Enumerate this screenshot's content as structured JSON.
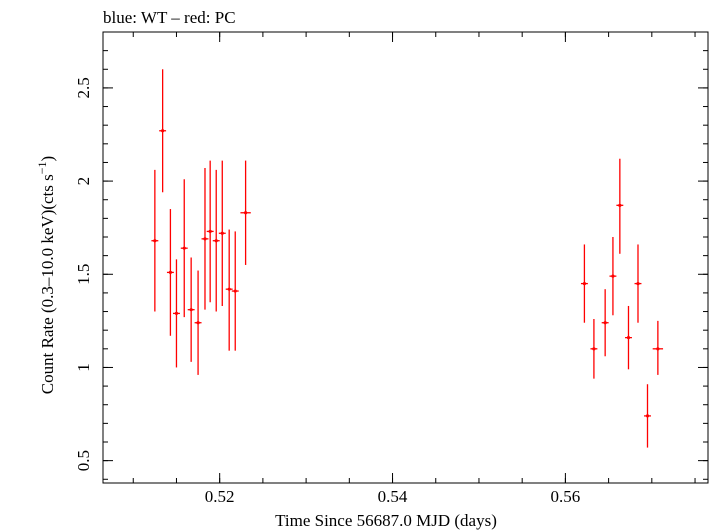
{
  "chart_data": {
    "type": "scatter",
    "title": "blue: WT – red: PC",
    "xlabel": "Time Since 56687.0 MJD (days)",
    "ylabel_main": "Count Rate (0.3–10.0 keV)(cts s",
    "ylabel_sup": "−1",
    "ylabel_close": ")",
    "xlim": [
      0.5065,
      0.5765
    ],
    "ylim": [
      0.38,
      2.8
    ],
    "xticks": [
      {
        "value": 0.52,
        "label": "0.52"
      },
      {
        "value": 0.54,
        "label": "0.54"
      },
      {
        "value": 0.56,
        "label": "0.56"
      }
    ],
    "yticks": [
      {
        "value": 0.5,
        "label": "0.5"
      },
      {
        "value": 1.0,
        "label": "1"
      },
      {
        "value": 1.5,
        "label": "1.5"
      },
      {
        "value": 2.0,
        "label": "2"
      },
      {
        "value": 2.5,
        "label": "2.5"
      }
    ],
    "x_minor_step": 0.005,
    "y_minor_step": 0.1,
    "grid": false,
    "series": [
      {
        "color": "#ff0000",
        "points": [
          {
            "x": 0.5125,
            "y": 1.68,
            "ylo": 1.3,
            "yhi": 2.06,
            "xerr": 0.0004
          },
          {
            "x": 0.5134,
            "y": 2.27,
            "ylo": 1.94,
            "yhi": 2.6,
            "xerr": 0.0004
          },
          {
            "x": 0.5143,
            "y": 1.51,
            "ylo": 1.17,
            "yhi": 1.85,
            "xerr": 0.0004
          },
          {
            "x": 0.515,
            "y": 1.29,
            "ylo": 1.0,
            "yhi": 1.58,
            "xerr": 0.0004
          },
          {
            "x": 0.5159,
            "y": 1.64,
            "ylo": 1.27,
            "yhi": 2.01,
            "xerr": 0.0004
          },
          {
            "x": 0.5167,
            "y": 1.31,
            "ylo": 1.03,
            "yhi": 1.59,
            "xerr": 0.0004
          },
          {
            "x": 0.5175,
            "y": 1.24,
            "ylo": 0.96,
            "yhi": 1.52,
            "xerr": 0.0004
          },
          {
            "x": 0.5183,
            "y": 1.69,
            "ylo": 1.31,
            "yhi": 2.07,
            "xerr": 0.0004
          },
          {
            "x": 0.5189,
            "y": 1.73,
            "ylo": 1.35,
            "yhi": 2.11,
            "xerr": 0.0004
          },
          {
            "x": 0.5196,
            "y": 1.68,
            "ylo": 1.3,
            "yhi": 2.06,
            "xerr": 0.0004
          },
          {
            "x": 0.5203,
            "y": 1.72,
            "ylo": 1.33,
            "yhi": 2.11,
            "xerr": 0.0004
          },
          {
            "x": 0.5211,
            "y": 1.42,
            "ylo": 1.09,
            "yhi": 1.74,
            "xerr": 0.0004
          },
          {
            "x": 0.5218,
            "y": 1.41,
            "ylo": 1.09,
            "yhi": 1.73,
            "xerr": 0.0004
          },
          {
            "x": 0.523,
            "y": 1.83,
            "ylo": 1.55,
            "yhi": 2.11,
            "xerr": 0.0006
          },
          {
            "x": 0.5622,
            "y": 1.45,
            "ylo": 1.24,
            "yhi": 1.66,
            "xerr": 0.0004
          },
          {
            "x": 0.5633,
            "y": 1.1,
            "ylo": 0.94,
            "yhi": 1.26,
            "xerr": 0.0004
          },
          {
            "x": 0.5646,
            "y": 1.24,
            "ylo": 1.06,
            "yhi": 1.42,
            "xerr": 0.0004
          },
          {
            "x": 0.5655,
            "y": 1.49,
            "ylo": 1.28,
            "yhi": 1.7,
            "xerr": 0.0004
          },
          {
            "x": 0.5663,
            "y": 1.87,
            "ylo": 1.61,
            "yhi": 2.12,
            "xerr": 0.0004
          },
          {
            "x": 0.5673,
            "y": 1.16,
            "ylo": 0.99,
            "yhi": 1.33,
            "xerr": 0.0004
          },
          {
            "x": 0.5684,
            "y": 1.45,
            "ylo": 1.24,
            "yhi": 1.66,
            "xerr": 0.0004
          },
          {
            "x": 0.5695,
            "y": 0.74,
            "ylo": 0.57,
            "yhi": 0.91,
            "xerr": 0.0004
          },
          {
            "x": 0.5707,
            "y": 1.1,
            "ylo": 0.96,
            "yhi": 1.25,
            "xerr": 0.0006
          }
        ]
      }
    ]
  }
}
